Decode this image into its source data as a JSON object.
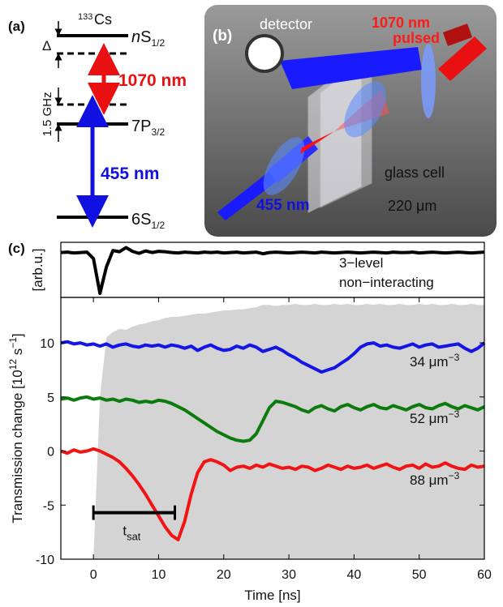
{
  "panel_a": {
    "label": "(a)",
    "isotope_mass": "133",
    "element": "Cs",
    "level_n": {
      "prefix": "n",
      "name": "S",
      "sub": "1/2"
    },
    "level_7p": {
      "name": "7P",
      "sub": "3/2"
    },
    "level_6s": {
      "name": "6S",
      "sub": "1/2"
    },
    "detuning": "Δ",
    "intermediate_detuning": "1.5 GHz",
    "red_laser": "1070 nm",
    "blue_laser": "455 nm"
  },
  "panel_b": {
    "label": "(b)",
    "detector": "detector",
    "red_laser": "1070 nm",
    "red_mode": "pulsed",
    "cell": "glass cell",
    "blue_laser": "455 nm",
    "thickness": "220 μm"
  },
  "panel_c": {
    "label": "(c)"
  },
  "chart_data": [
    {
      "type": "line",
      "ylabel": "[arb.u.]",
      "x": [
        -5,
        -4,
        -3,
        -2,
        -1,
        0,
        1,
        2,
        3,
        4,
        5,
        6,
        7,
        8,
        9,
        10,
        11,
        12,
        13,
        14,
        15,
        16,
        17,
        18,
        19,
        20,
        21,
        22,
        23,
        24,
        25,
        26,
        27,
        28,
        29,
        30,
        31,
        32,
        33,
        34,
        35,
        36,
        37,
        38,
        39,
        40,
        41,
        42,
        43,
        44,
        45,
        46,
        47,
        48,
        49,
        50,
        51,
        52,
        53,
        54,
        55,
        56,
        57,
        58,
        59,
        60
      ],
      "xlim": [
        -5,
        60
      ],
      "ylim": [
        -1.1,
        0.25
      ],
      "annotations": [
        "3−level",
        "non−interacting"
      ],
      "series": [
        {
          "color": "#000000",
          "values": [
            0,
            0.01,
            -0.01,
            0,
            0.01,
            -0.15,
            -1.0,
            -0.35,
            0.05,
            0.02,
            0.12,
            0.03,
            -0.02,
            0.04,
            0.0,
            0.03,
            0.02,
            0,
            -0.01,
            0.01,
            0,
            -0.01,
            0.01,
            0,
            0.01,
            -0.01,
            0,
            0.01,
            -0.01,
            0,
            0.01,
            -0.03,
            0,
            0.01,
            0,
            -0.01,
            0,
            0.01,
            0,
            -0.01,
            0.01,
            0,
            -0.01,
            0,
            0.01,
            0,
            -0.01,
            0,
            0.01,
            0,
            -0.01,
            0.01,
            0,
            0,
            0.01,
            -0.01,
            0,
            0.01,
            0,
            -0.01,
            0,
            0.01,
            0,
            -0.01,
            0,
            0.01
          ]
        }
      ]
    },
    {
      "type": "line",
      "xlabel": "Time [ns]",
      "ylabel": {
        "text": "Transmission change [10",
        "sup1": "12",
        "mid": " s",
        "sup2": "−1",
        "end": "]"
      },
      "x": [
        -5,
        -4,
        -3,
        -2,
        -1,
        0,
        1,
        2,
        3,
        4,
        5,
        6,
        7,
        8,
        9,
        10,
        11,
        12,
        13,
        14,
        15,
        16,
        17,
        18,
        19,
        20,
        21,
        22,
        23,
        24,
        25,
        26,
        27,
        28,
        29,
        30,
        31,
        32,
        33,
        34,
        35,
        36,
        37,
        38,
        39,
        40,
        41,
        42,
        43,
        44,
        45,
        46,
        47,
        48,
        49,
        50,
        51,
        52,
        53,
        54,
        55,
        56,
        57,
        58,
        59,
        60
      ],
      "xlim": [
        -5,
        60
      ],
      "ylim": [
        -10,
        14.2
      ],
      "xticks": [
        0,
        10,
        20,
        30,
        40,
        50,
        60
      ],
      "yticks": [
        -10,
        -5,
        0,
        5,
        10
      ],
      "series": [
        {
          "type": "area",
          "color": "#d4d4d4",
          "values": [
            null,
            null,
            null,
            null,
            null,
            -10,
            5,
            10.5,
            11,
            11.3,
            11.2,
            11.5,
            11.7,
            11.8,
            12,
            12.1,
            12.3,
            12.4,
            12.4,
            12.5,
            12.6,
            12.7,
            12.7,
            12.8,
            12.9,
            13,
            13,
            13.1,
            13.1,
            13.2,
            13.3,
            13.5,
            13.5,
            13.4,
            13.5,
            13.5,
            13.6,
            13.5,
            13.5,
            13.6,
            13.5,
            13.5,
            13.6,
            13.5,
            13.6,
            13.5,
            13.5,
            13.6,
            13.5,
            13.6,
            13.5,
            13.5,
            13.6,
            13.5,
            13.5,
            13.6,
            13.5,
            13.6,
            13.5,
            13.5,
            13.6,
            13.5,
            13.5,
            13.6,
            13.5,
            13.5
          ]
        },
        {
          "color": "#1515e6",
          "label": "34 μm",
          "label_sup": "−3",
          "values": [
            10.0,
            10.1,
            9.9,
            10.0,
            9.8,
            9.9,
            9.7,
            9.9,
            9.6,
            9.8,
            9.9,
            9.7,
            9.6,
            9.8,
            9.7,
            9.8,
            9.6,
            9.8,
            9.7,
            9.5,
            9.7,
            9.3,
            9.6,
            9.8,
            9.5,
            9.3,
            9.4,
            9.7,
            9.5,
            9.8,
            9.6,
            9.2,
            9.4,
            9.6,
            9.3,
            8.9,
            8.6,
            8.2,
            7.9,
            7.6,
            7.3,
            7.5,
            7.7,
            8.1,
            8.5,
            9.0,
            9.6,
            9.9,
            10.0,
            9.7,
            9.8,
            9.6,
            9.5,
            9.7,
            9.9,
            9.6,
            9.8,
            9.9,
            9.6,
            9.7,
            9.8,
            9.9,
            9.5,
            9.2,
            9.5,
            10.0
          ]
        },
        {
          "color": "#0d7a0d",
          "label": "52 μm",
          "label_sup": "−3",
          "values": [
            4.8,
            4.9,
            4.7,
            4.9,
            5.0,
            4.8,
            4.9,
            4.7,
            4.8,
            4.6,
            4.8,
            4.7,
            4.5,
            4.6,
            4.5,
            4.7,
            4.6,
            4.4,
            4.1,
            3.8,
            3.4,
            3.0,
            2.6,
            2.2,
            1.8,
            1.5,
            1.2,
            1.0,
            0.9,
            1.0,
            1.6,
            2.8,
            4.0,
            4.6,
            4.5,
            4.3,
            4.1,
            3.8,
            3.6,
            4.0,
            4.2,
            3.9,
            3.7,
            4.1,
            4.3,
            4.0,
            3.8,
            4.1,
            4.3,
            4.0,
            3.9,
            4.2,
            4.0,
            3.8,
            4.1,
            4.3,
            4.0,
            3.9,
            4.2,
            4.4,
            4.1,
            3.9,
            4.2,
            4.0,
            3.8,
            4.1
          ]
        },
        {
          "color": "#f01414",
          "label": "88 μm",
          "label_sup": "−3",
          "values": [
            0.0,
            -0.2,
            0.1,
            -0.1,
            0.0,
            0.2,
            0.0,
            -0.3,
            -0.6,
            -1.0,
            -1.6,
            -2.3,
            -3.1,
            -4.0,
            -5.0,
            -6.0,
            -7.0,
            -7.8,
            -8.2,
            -6.5,
            -4.0,
            -2.0,
            -1.0,
            -0.8,
            -1.0,
            -1.3,
            -1.8,
            -1.5,
            -1.4,
            -1.6,
            -1.3,
            -1.5,
            -1.2,
            -1.4,
            -1.6,
            -1.5,
            -1.7,
            -1.4,
            -1.5,
            -1.8,
            -1.6,
            -1.3,
            -1.5,
            -1.7,
            -1.4,
            -1.6,
            -1.5,
            -1.3,
            -1.6,
            -1.4,
            -1.2,
            -1.5,
            -1.7,
            -1.4,
            -1.3,
            -1.6,
            -1.2,
            -1.5,
            -1.4,
            -1.1,
            -1.4,
            -1.6,
            -1.7,
            -1.3,
            -1.5,
            -1.4
          ]
        }
      ],
      "interval": {
        "start": 0,
        "end": 12.5,
        "y": -5.7,
        "label": "t",
        "sub": "sat"
      }
    }
  ]
}
